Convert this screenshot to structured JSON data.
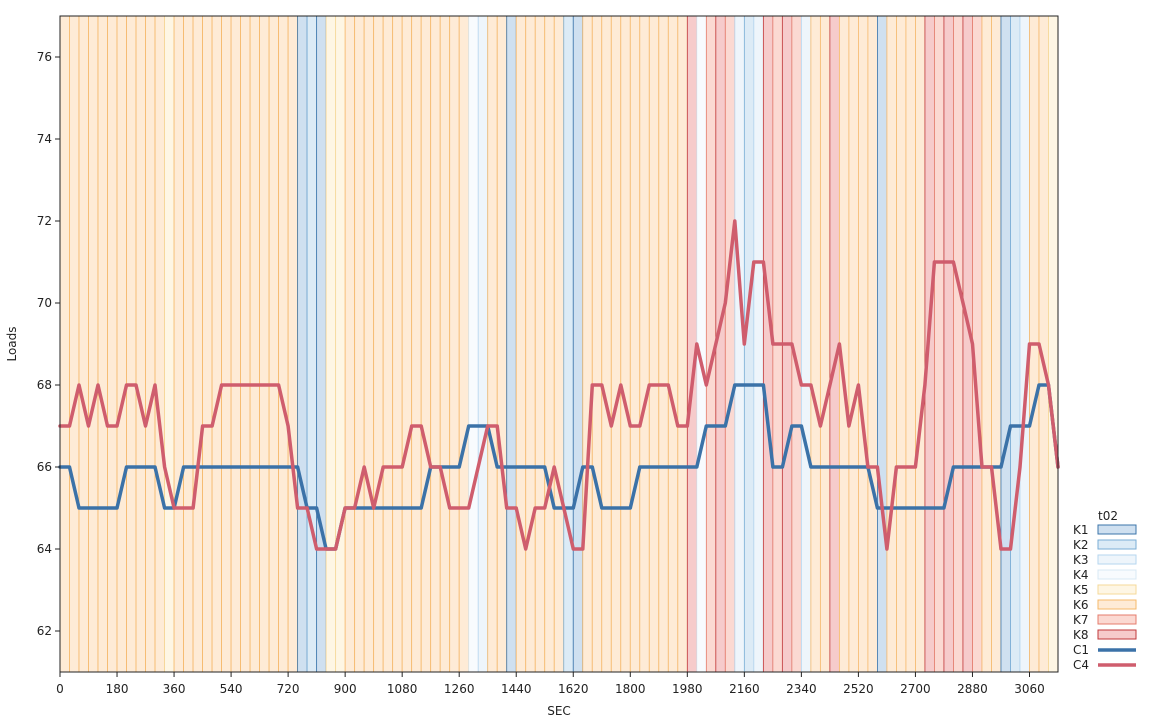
{
  "chart_data": {
    "type": "line",
    "xlabel": "SEC",
    "ylabel": "Loads",
    "xlim": [
      0,
      3150
    ],
    "ylim": [
      61,
      77
    ],
    "xticks": [
      0,
      180,
      360,
      540,
      720,
      900,
      1080,
      1260,
      1440,
      1620,
      1800,
      1980,
      2160,
      2340,
      2520,
      2700,
      2880,
      3060
    ],
    "yticks": [
      62,
      64,
      66,
      68,
      70,
      72,
      74,
      76
    ],
    "legend": {
      "title": "t02",
      "placement": "right",
      "entries": [
        {
          "key": "K1",
          "kind": "band",
          "fill": "#cfe0f0",
          "stroke": "#3b74aa"
        },
        {
          "key": "K2",
          "kind": "band",
          "fill": "#dcebf6",
          "stroke": "#7aaed6"
        },
        {
          "key": "K3",
          "kind": "band",
          "fill": "#eef5fb",
          "stroke": "#b6d6ef"
        },
        {
          "key": "K4",
          "kind": "band",
          "fill": "#f8fbfe",
          "stroke": "#d8e8f4"
        },
        {
          "key": "K5",
          "kind": "band",
          "fill": "#fef6e4",
          "stroke": "#f5d99a"
        },
        {
          "key": "K6",
          "kind": "band",
          "fill": "#feebd6",
          "stroke": "#f5b86a"
        },
        {
          "key": "K7",
          "kind": "band",
          "fill": "#fbd9d2",
          "stroke": "#e47c6c"
        },
        {
          "key": "K8",
          "kind": "band",
          "fill": "#f6cbcb",
          "stroke": "#c0393b"
        },
        {
          "key": "C1",
          "kind": "line",
          "stroke": "#3b72a8"
        },
        {
          "key": "C4",
          "kind": "line",
          "stroke": "#cf5d6d"
        }
      ]
    },
    "band_width": 30,
    "band_classes": [
      "K6",
      "K6",
      "K6",
      "K6",
      "K6",
      "K6",
      "K6",
      "K6",
      "K6",
      "K6",
      "K6",
      "K5",
      "K6",
      "K6",
      "K6",
      "K6",
      "K6",
      "K6",
      "K6",
      "K6",
      "K6",
      "K6",
      "K6",
      "K6",
      "K6",
      "K1",
      "K2",
      "K1",
      "K5",
      "K5",
      "K6",
      "K6",
      "K6",
      "K6",
      "K6",
      "K6",
      "K6",
      "K6",
      "K6",
      "K6",
      "K6",
      "K6",
      "K6",
      "K4",
      "K3",
      "K6",
      "K6",
      "K6",
      "K6",
      "K6",
      "K6",
      "K6",
      "K6",
      "K6",
      "K6",
      "K6",
      "K6",
      "K6",
      "K6",
      "K6",
      "K6",
      "K6",
      "K6",
      "K6",
      "K6",
      "K6",
      "K6",
      "K6",
      "K7",
      "K7",
      "K7",
      "K7",
      "K7",
      "K7",
      "K7",
      "K7",
      "K7",
      "K6",
      "K6",
      "K6",
      "K6",
      "K6",
      "K6",
      "K6",
      "K6",
      "K6",
      "K6",
      "K6",
      "K6",
      "K6",
      "K6",
      "K6",
      "K6",
      "K6",
      "K6",
      "K6",
      "K6",
      "K6",
      "K6",
      "K6",
      "K6",
      "K6",
      "K6",
      "K6",
      "K6",
      "K6"
    ],
    "band_overrides": [
      {
        "start": 1410,
        "end": 1440,
        "class": "K1"
      },
      {
        "start": 1590,
        "end": 1620,
        "class": "K2"
      },
      {
        "start": 1620,
        "end": 1650,
        "class": "K1"
      },
      {
        "start": 1980,
        "end": 2010,
        "class": "K8"
      },
      {
        "start": 2010,
        "end": 2040,
        "class": "K4"
      },
      {
        "start": 2040,
        "end": 2070,
        "class": "K7"
      },
      {
        "start": 2070,
        "end": 2100,
        "class": "K8"
      },
      {
        "start": 2100,
        "end": 2130,
        "class": "K7"
      },
      {
        "start": 2130,
        "end": 2160,
        "class": "K3"
      },
      {
        "start": 2160,
        "end": 2190,
        "class": "K2"
      },
      {
        "start": 2190,
        "end": 2220,
        "class": "K3"
      },
      {
        "start": 2220,
        "end": 2250,
        "class": "K8"
      },
      {
        "start": 2250,
        "end": 2280,
        "class": "K7"
      },
      {
        "start": 2280,
        "end": 2310,
        "class": "K8"
      },
      {
        "start": 2310,
        "end": 2340,
        "class": "K7"
      },
      {
        "start": 2340,
        "end": 2370,
        "class": "K3"
      },
      {
        "start": 2370,
        "end": 2400,
        "class": "K6"
      },
      {
        "start": 2430,
        "end": 2460,
        "class": "K8"
      },
      {
        "start": 2580,
        "end": 2610,
        "class": "K1"
      },
      {
        "start": 2730,
        "end": 2760,
        "class": "K8"
      },
      {
        "start": 2760,
        "end": 2790,
        "class": "K7"
      },
      {
        "start": 2790,
        "end": 2820,
        "class": "K8"
      },
      {
        "start": 2820,
        "end": 2850,
        "class": "K7"
      },
      {
        "start": 2850,
        "end": 2880,
        "class": "K8"
      },
      {
        "start": 2880,
        "end": 2910,
        "class": "K7"
      },
      {
        "start": 2970,
        "end": 3000,
        "class": "K1"
      },
      {
        "start": 3000,
        "end": 3030,
        "class": "K2"
      },
      {
        "start": 3030,
        "end": 3060,
        "class": "K3"
      },
      {
        "start": 3060,
        "end": 3090,
        "class": "K6"
      },
      {
        "start": 3090,
        "end": 3120,
        "class": "K6"
      },
      {
        "start": 3120,
        "end": 3150,
        "class": "K5"
      }
    ],
    "series": [
      {
        "name": "C1",
        "color": "#3b72a8",
        "points": [
          [
            0,
            66
          ],
          [
            30,
            66
          ],
          [
            60,
            65
          ],
          [
            90,
            65
          ],
          [
            120,
            65
          ],
          [
            150,
            65
          ],
          [
            180,
            65
          ],
          [
            210,
            66
          ],
          [
            240,
            66
          ],
          [
            270,
            66
          ],
          [
            300,
            66
          ],
          [
            330,
            65
          ],
          [
            360,
            65
          ],
          [
            390,
            66
          ],
          [
            420,
            66
          ],
          [
            450,
            66
          ],
          [
            480,
            66
          ],
          [
            510,
            66
          ],
          [
            540,
            66
          ],
          [
            570,
            66
          ],
          [
            600,
            66
          ],
          [
            630,
            66
          ],
          [
            660,
            66
          ],
          [
            690,
            66
          ],
          [
            720,
            66
          ],
          [
            750,
            66
          ],
          [
            780,
            65
          ],
          [
            810,
            65
          ],
          [
            840,
            64
          ],
          [
            870,
            64
          ],
          [
            900,
            65
          ],
          [
            930,
            65
          ],
          [
            960,
            65
          ],
          [
            990,
            65
          ],
          [
            1020,
            65
          ],
          [
            1050,
            65
          ],
          [
            1080,
            65
          ],
          [
            1110,
            65
          ],
          [
            1140,
            65
          ],
          [
            1170,
            66
          ],
          [
            1200,
            66
          ],
          [
            1230,
            66
          ],
          [
            1260,
            66
          ],
          [
            1290,
            67
          ],
          [
            1320,
            67
          ],
          [
            1350,
            67
          ],
          [
            1380,
            66
          ],
          [
            1410,
            66
          ],
          [
            1440,
            66
          ],
          [
            1470,
            66
          ],
          [
            1500,
            66
          ],
          [
            1530,
            66
          ],
          [
            1560,
            65
          ],
          [
            1590,
            65
          ],
          [
            1620,
            65
          ],
          [
            1650,
            66
          ],
          [
            1680,
            66
          ],
          [
            1710,
            65
          ],
          [
            1740,
            65
          ],
          [
            1770,
            65
          ],
          [
            1800,
            65
          ],
          [
            1830,
            66
          ],
          [
            1860,
            66
          ],
          [
            1890,
            66
          ],
          [
            1920,
            66
          ],
          [
            1950,
            66
          ],
          [
            1980,
            66
          ],
          [
            2010,
            66
          ],
          [
            2040,
            67
          ],
          [
            2070,
            67
          ],
          [
            2100,
            67
          ],
          [
            2130,
            68
          ],
          [
            2160,
            68
          ],
          [
            2190,
            68
          ],
          [
            2220,
            68
          ],
          [
            2250,
            66
          ],
          [
            2280,
            66
          ],
          [
            2310,
            67
          ],
          [
            2340,
            67
          ],
          [
            2370,
            66
          ],
          [
            2400,
            66
          ],
          [
            2430,
            66
          ],
          [
            2460,
            66
          ],
          [
            2490,
            66
          ],
          [
            2520,
            66
          ],
          [
            2550,
            66
          ],
          [
            2580,
            65
          ],
          [
            2610,
            65
          ],
          [
            2640,
            65
          ],
          [
            2670,
            65
          ],
          [
            2700,
            65
          ],
          [
            2730,
            65
          ],
          [
            2760,
            65
          ],
          [
            2790,
            65
          ],
          [
            2820,
            66
          ],
          [
            2850,
            66
          ],
          [
            2880,
            66
          ],
          [
            2910,
            66
          ],
          [
            2940,
            66
          ],
          [
            2970,
            66
          ],
          [
            3000,
            67
          ],
          [
            3030,
            67
          ],
          [
            3060,
            67
          ],
          [
            3090,
            68
          ],
          [
            3120,
            68
          ],
          [
            3150,
            66
          ]
        ]
      },
      {
        "name": "C4",
        "color": "#cf5d6d",
        "points": [
          [
            0,
            67
          ],
          [
            30,
            67
          ],
          [
            60,
            68
          ],
          [
            90,
            67
          ],
          [
            120,
            68
          ],
          [
            150,
            67
          ],
          [
            180,
            67
          ],
          [
            210,
            68
          ],
          [
            240,
            68
          ],
          [
            270,
            67
          ],
          [
            300,
            68
          ],
          [
            330,
            66
          ],
          [
            360,
            65
          ],
          [
            390,
            65
          ],
          [
            420,
            65
          ],
          [
            450,
            67
          ],
          [
            480,
            67
          ],
          [
            510,
            68
          ],
          [
            540,
            68
          ],
          [
            570,
            68
          ],
          [
            600,
            68
          ],
          [
            630,
            68
          ],
          [
            660,
            68
          ],
          [
            690,
            68
          ],
          [
            720,
            67
          ],
          [
            750,
            65
          ],
          [
            780,
            65
          ],
          [
            810,
            64
          ],
          [
            840,
            64
          ],
          [
            870,
            64
          ],
          [
            900,
            65
          ],
          [
            930,
            65
          ],
          [
            960,
            66
          ],
          [
            990,
            65
          ],
          [
            1020,
            66
          ],
          [
            1050,
            66
          ],
          [
            1080,
            66
          ],
          [
            1110,
            67
          ],
          [
            1140,
            67
          ],
          [
            1170,
            66
          ],
          [
            1200,
            66
          ],
          [
            1230,
            65
          ],
          [
            1260,
            65
          ],
          [
            1290,
            65
          ],
          [
            1320,
            66
          ],
          [
            1350,
            67
          ],
          [
            1380,
            67
          ],
          [
            1410,
            65
          ],
          [
            1440,
            65
          ],
          [
            1470,
            64
          ],
          [
            1500,
            65
          ],
          [
            1530,
            65
          ],
          [
            1560,
            66
          ],
          [
            1590,
            65
          ],
          [
            1620,
            64
          ],
          [
            1650,
            64
          ],
          [
            1680,
            68
          ],
          [
            1710,
            68
          ],
          [
            1740,
            67
          ],
          [
            1770,
            68
          ],
          [
            1800,
            67
          ],
          [
            1830,
            67
          ],
          [
            1860,
            68
          ],
          [
            1890,
            68
          ],
          [
            1920,
            68
          ],
          [
            1950,
            67
          ],
          [
            1980,
            67
          ],
          [
            2010,
            69
          ],
          [
            2040,
            68
          ],
          [
            2070,
            69
          ],
          [
            2100,
            70
          ],
          [
            2130,
            72
          ],
          [
            2160,
            69
          ],
          [
            2190,
            71
          ],
          [
            2220,
            71
          ],
          [
            2250,
            69
          ],
          [
            2280,
            69
          ],
          [
            2310,
            69
          ],
          [
            2340,
            68
          ],
          [
            2370,
            68
          ],
          [
            2400,
            67
          ],
          [
            2430,
            68
          ],
          [
            2460,
            69
          ],
          [
            2490,
            67
          ],
          [
            2520,
            68
          ],
          [
            2550,
            66
          ],
          [
            2580,
            66
          ],
          [
            2610,
            64
          ],
          [
            2640,
            66
          ],
          [
            2670,
            66
          ],
          [
            2700,
            66
          ],
          [
            2730,
            68
          ],
          [
            2760,
            71
          ],
          [
            2790,
            71
          ],
          [
            2820,
            71
          ],
          [
            2850,
            70
          ],
          [
            2880,
            69
          ],
          [
            2910,
            66
          ],
          [
            2940,
            66
          ],
          [
            2970,
            64
          ],
          [
            3000,
            64
          ],
          [
            3030,
            66
          ],
          [
            3060,
            69
          ],
          [
            3090,
            69
          ],
          [
            3120,
            68
          ],
          [
            3150,
            66
          ]
        ]
      }
    ]
  }
}
